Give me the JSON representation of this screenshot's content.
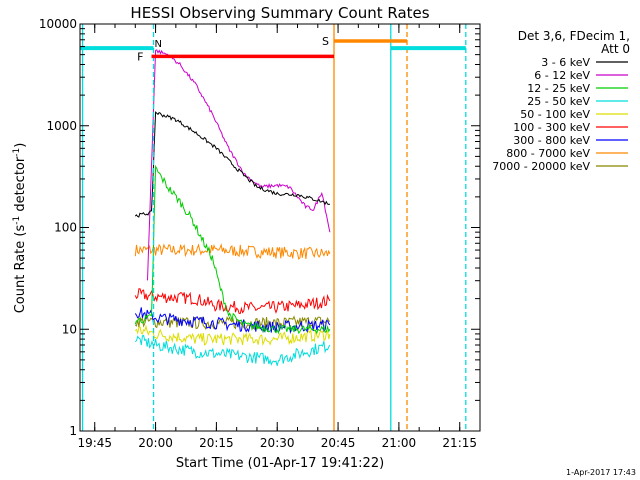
{
  "chart_data": {
    "type": "line",
    "title": "HESSI Observing Summary Count Rates",
    "xlabel": "Start Time (01-Apr-17 19:41:22)",
    "ylabel": "Count Rate (s⁻¹ detector⁻¹)",
    "ylabel_main": "Count Rate (s",
    "ylabel_sup1": "-1",
    "ylabel_mid": " detector",
    "ylabel_sup2": "-1",
    "ylabel_end": ")",
    "x_range": [
      "19:41:22",
      "21:20:00"
    ],
    "y_range": [
      1,
      10000
    ],
    "y_scale": "log",
    "x_tick_labels": [
      "19:45",
      "20:00",
      "20:15",
      "20:30",
      "20:45",
      "21:00",
      "21:15"
    ],
    "y_tick_labels": [
      "1",
      "10",
      "100",
      "1000",
      "10000"
    ],
    "legend_header": [
      "Det 3,6, FDecim 1,",
      "Att 0"
    ],
    "legend_position": "right",
    "timestamp": "1-Apr-2017 17:43",
    "series": [
      {
        "name": "3 - 6 keV",
        "color": "#000000",
        "points": [
          [
            "19:55",
            130
          ],
          [
            "19:59",
            140
          ],
          [
            "20:00",
            1350
          ],
          [
            "20:05",
            1150
          ],
          [
            "20:10",
            850
          ],
          [
            "20:15",
            600
          ],
          [
            "20:20",
            380
          ],
          [
            "20:25",
            250
          ],
          [
            "20:30",
            215
          ],
          [
            "20:35",
            210
          ],
          [
            "20:40",
            185
          ],
          [
            "20:43",
            170
          ]
        ]
      },
      {
        "name": "6 - 12 keV",
        "color": "#cc00cc",
        "points": [
          [
            "19:58",
            30
          ],
          [
            "20:00",
            5500
          ],
          [
            "20:03",
            5000
          ],
          [
            "20:06",
            4000
          ],
          [
            "20:10",
            2500
          ],
          [
            "20:14",
            1300
          ],
          [
            "20:18",
            600
          ],
          [
            "20:22",
            330
          ],
          [
            "20:26",
            250
          ],
          [
            "20:30",
            260
          ],
          [
            "20:33",
            250
          ],
          [
            "20:37",
            160
          ],
          [
            "20:39",
            150
          ],
          [
            "20:41",
            225
          ],
          [
            "20:43",
            90
          ]
        ]
      },
      {
        "name": "12 - 25 keV",
        "color": "#00cc00",
        "points": [
          [
            "19:55",
            12
          ],
          [
            "19:59",
            13
          ],
          [
            "20:00",
            380
          ],
          [
            "20:03",
            250
          ],
          [
            "20:06",
            180
          ],
          [
            "20:09",
            120
          ],
          [
            "20:12",
            70
          ],
          [
            "20:14",
            50
          ],
          [
            "20:16",
            25
          ],
          [
            "20:18",
            14
          ],
          [
            "20:22",
            11
          ],
          [
            "20:30",
            10
          ],
          [
            "20:43",
            10
          ]
        ]
      },
      {
        "name": "25 - 50 keV",
        "color": "#00dddd",
        "points": [
          [
            "19:55",
            8
          ],
          [
            "20:00",
            7
          ],
          [
            "20:10",
            6
          ],
          [
            "20:20",
            5.5
          ],
          [
            "20:30",
            5
          ],
          [
            "20:40",
            6.5
          ],
          [
            "20:43",
            7
          ]
        ]
      },
      {
        "name": "50 - 100 keV",
        "color": "#dddd00",
        "points": [
          [
            "19:55",
            10
          ],
          [
            "20:00",
            9
          ],
          [
            "20:10",
            8
          ],
          [
            "20:20",
            8
          ],
          [
            "20:30",
            8
          ],
          [
            "20:43",
            9
          ]
        ]
      },
      {
        "name": "100 - 300 keV",
        "color": "#ff0000",
        "points": [
          [
            "19:55",
            22
          ],
          [
            "20:00",
            21
          ],
          [
            "20:10",
            20
          ],
          [
            "20:15",
            17
          ],
          [
            "20:25",
            16
          ],
          [
            "20:35",
            17
          ],
          [
            "20:43",
            19
          ]
        ]
      },
      {
        "name": "300 - 800 keV",
        "color": "#0000ff",
        "points": [
          [
            "19:55",
            15
          ],
          [
            "20:00",
            13
          ],
          [
            "20:10",
            12
          ],
          [
            "20:20",
            11
          ],
          [
            "20:30",
            10.5
          ],
          [
            "20:43",
            11
          ]
        ]
      },
      {
        "name": "800 - 7000 keV",
        "color": "#ff8800",
        "points": [
          [
            "19:55",
            60
          ],
          [
            "20:05",
            60
          ],
          [
            "20:15",
            60
          ],
          [
            "20:25",
            58
          ],
          [
            "20:35",
            56
          ],
          [
            "20:43",
            55
          ]
        ]
      },
      {
        "name": "7000 - 20000 keV",
        "color": "#888800",
        "points": [
          [
            "19:55",
            12
          ],
          [
            "20:10",
            11.5
          ],
          [
            "20:30",
            11.5
          ],
          [
            "20:43",
            12
          ]
        ]
      }
    ],
    "annotations": {
      "flare_label": "F",
      "flare_span": [
        "19:59",
        "20:44"
      ],
      "flare_level": 4800,
      "flare_color": "#ff0000",
      "saa_label": "S",
      "saa_span": [
        "20:44",
        "21:02"
      ],
      "saa_level": 6800,
      "saa_color": "#ff8800",
      "night_label": "N",
      "night_color": "#00dddd",
      "night_level": 5800,
      "night_spans": [
        [
          "19:41:22",
          "19:59:30"
        ],
        [
          "20:58",
          "21:16:30"
        ]
      ],
      "vlines": [
        {
          "t": "19:42",
          "color": "#00dddd",
          "style": "solid"
        },
        {
          "t": "19:59:30",
          "color": "#00dddd",
          "style": "dashed"
        },
        {
          "t": "20:44",
          "color": "#ff8800",
          "style": "solid"
        },
        {
          "t": "20:58",
          "color": "#00dddd",
          "style": "solid"
        },
        {
          "t": "21:02",
          "color": "#ff8800",
          "style": "dashed"
        },
        {
          "t": "21:16:30",
          "color": "#00dddd",
          "style": "dashed"
        }
      ]
    }
  }
}
